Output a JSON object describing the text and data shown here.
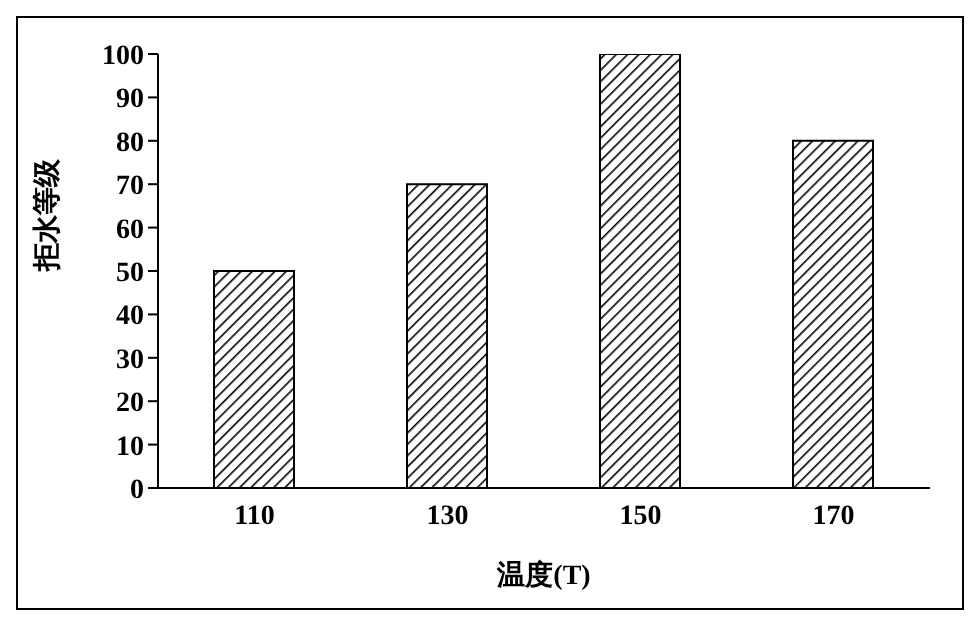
{
  "chart_data": {
    "type": "bar",
    "xlabel": "温度(T)",
    "ylabel": "拒水等级",
    "categories": [
      "110",
      "130",
      "150",
      "170"
    ],
    "values": [
      50,
      70,
      100,
      80
    ],
    "color": "#000000",
    "ylim": [
      0,
      100
    ],
    "yticks": [
      0,
      10,
      20,
      30,
      40,
      50,
      60,
      70,
      80,
      90,
      100
    ],
    "grid": false
  }
}
